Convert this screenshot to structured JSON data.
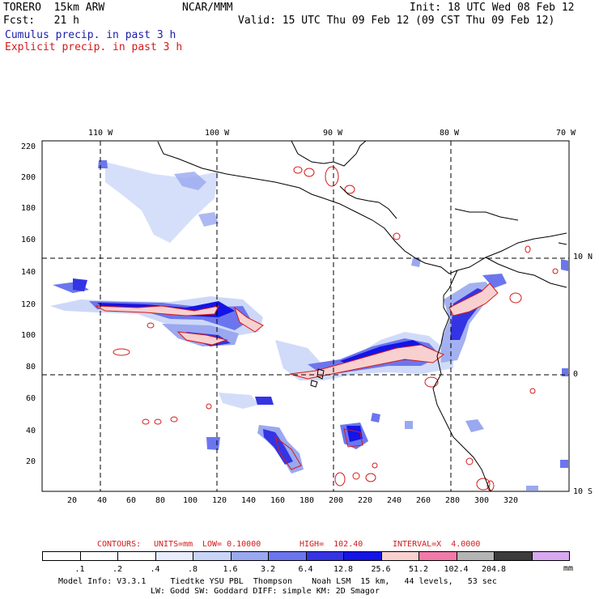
{
  "header": {
    "model": "TORERO  15km ARW",
    "org": "NCAR/MMM",
    "init": "Init: 18 UTC Wed 08 Feb 12",
    "fcst": "Fcst:   21 h",
    "valid": "Valid: 15 UTC Thu 09 Feb 12 (09 CST Thu 09 Feb 12)"
  },
  "legend": {
    "cumulus": "Cumulus precip. in past 3 h",
    "explicit": "Explicit precip. in past 3 h"
  },
  "axes": {
    "lon_labels": [
      "110 W",
      "100 W",
      "90 W",
      "80 W",
      "70 W"
    ],
    "lat_labels": [
      "10 N",
      "0",
      "10 S"
    ],
    "y_ticks": [
      "220",
      "200",
      "180",
      "160",
      "140",
      "120",
      "100",
      "80",
      "60",
      "40",
      "20"
    ],
    "x_ticks": [
      "20",
      "40",
      "60",
      "80",
      "100",
      "120",
      "140",
      "160",
      "180",
      "200",
      "220",
      "240",
      "260",
      "280",
      "300",
      "320"
    ]
  },
  "contours": {
    "label": "CONTOURS:",
    "units": "UNITS=mm",
    "low": "LOW= 0.10000",
    "high": "HIGH=  102.40",
    "interval": "INTERVAL=X  4.0000"
  },
  "colorbar": {
    "unit": "mm",
    "labels": [
      ".1",
      ".2",
      ".4",
      ".8",
      "1.6",
      "3.2",
      "6.4",
      "12.8",
      "25.6",
      "51.2",
      "102.4",
      "204.8"
    ],
    "colors": [
      "#ffffff",
      "#ffffff",
      "#ffffff",
      "#e8ecfc",
      "#c8d4f8",
      "#9aa8f0",
      "#6b76ee",
      "#3434e4",
      "#1414e6",
      "#f8d0d0",
      "#f07aa8",
      "#b4b4b4",
      "#3c3c3c",
      "#d8a8f0"
    ]
  },
  "footer": {
    "line1": "Model Info: V3.3.1     Tiedtke YSU PBL  Thompson    Noah LSM  15 km,   44 levels,   53 sec",
    "line2": "LW: Godd SW: Goddard DIFF: simple KM: 2D Smagor"
  }
}
